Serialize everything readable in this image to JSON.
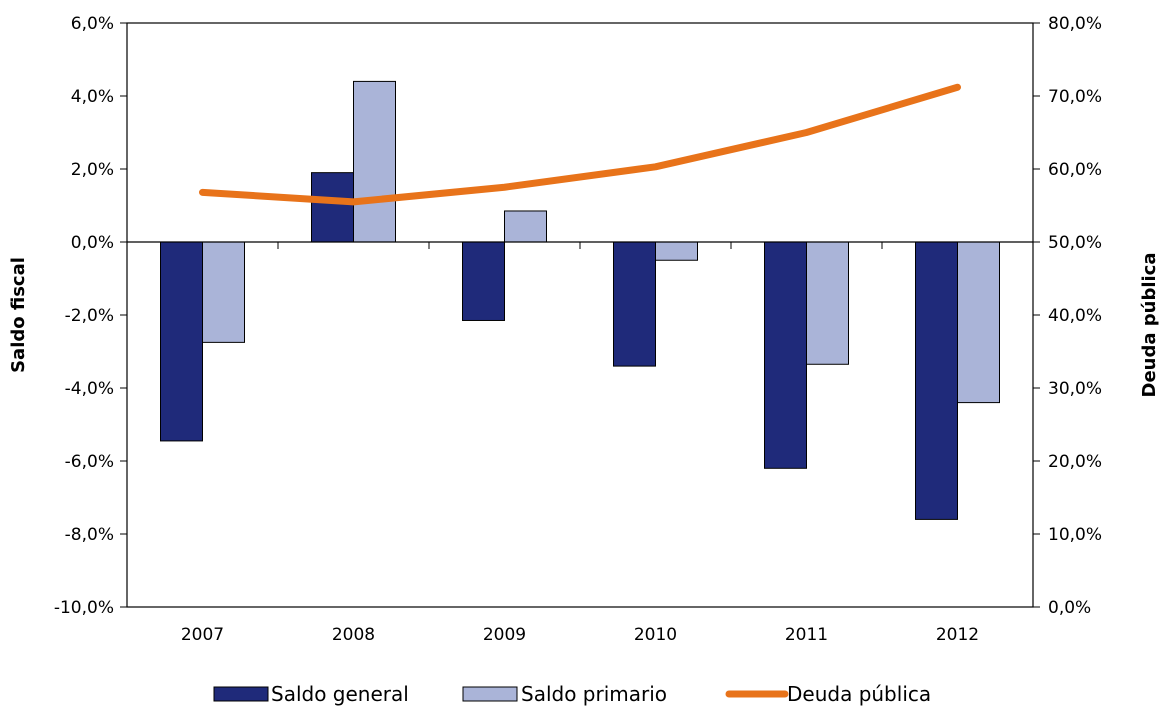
{
  "chart_data": {
    "type": "bar",
    "categories": [
      "2007",
      "2008",
      "2009",
      "2010",
      "2011",
      "2012"
    ],
    "y_left": {
      "label": "Saldo fiscal",
      "range": [
        -10.0,
        6.0
      ],
      "ticks": [
        6.0,
        4.0,
        2.0,
        0.0,
        -2.0,
        -4.0,
        -6.0,
        -8.0,
        -10.0
      ],
      "tick_labels": [
        "6,0%",
        "4,0%",
        "2,0%",
        "0,0%",
        "-2,0%",
        "-4,0%",
        "-6,0%",
        "-8,0%",
        "-10,0%"
      ]
    },
    "y_right": {
      "label": "Deuda pública",
      "range": [
        0.0,
        80.0
      ],
      "ticks": [
        80.0,
        70.0,
        60.0,
        50.0,
        40.0,
        30.0,
        20.0,
        10.0,
        0.0
      ],
      "tick_labels": [
        "80,0%",
        "70,0%",
        "60,0%",
        "50,0%",
        "40,0%",
        "30,0%",
        "20,0%",
        "10,0%",
        "0,0%"
      ]
    },
    "series": [
      {
        "name": "Saldo general",
        "kind": "bar",
        "axis": "left",
        "color": "#1f2a7a",
        "values": [
          -5.45,
          1.9,
          -2.15,
          -3.4,
          -6.2,
          -7.6
        ]
      },
      {
        "name": "Saldo primario",
        "kind": "bar",
        "axis": "left",
        "color": "#aab4d8",
        "values": [
          -2.75,
          4.4,
          0.85,
          -0.5,
          -3.35,
          -4.4
        ]
      },
      {
        "name": "Deuda pública",
        "kind": "line",
        "axis": "right",
        "color": "#e8731a",
        "values": [
          56.8,
          55.5,
          57.5,
          60.3,
          65.0,
          71.2
        ]
      }
    ],
    "legend_position": "bottom",
    "grid": false
  }
}
